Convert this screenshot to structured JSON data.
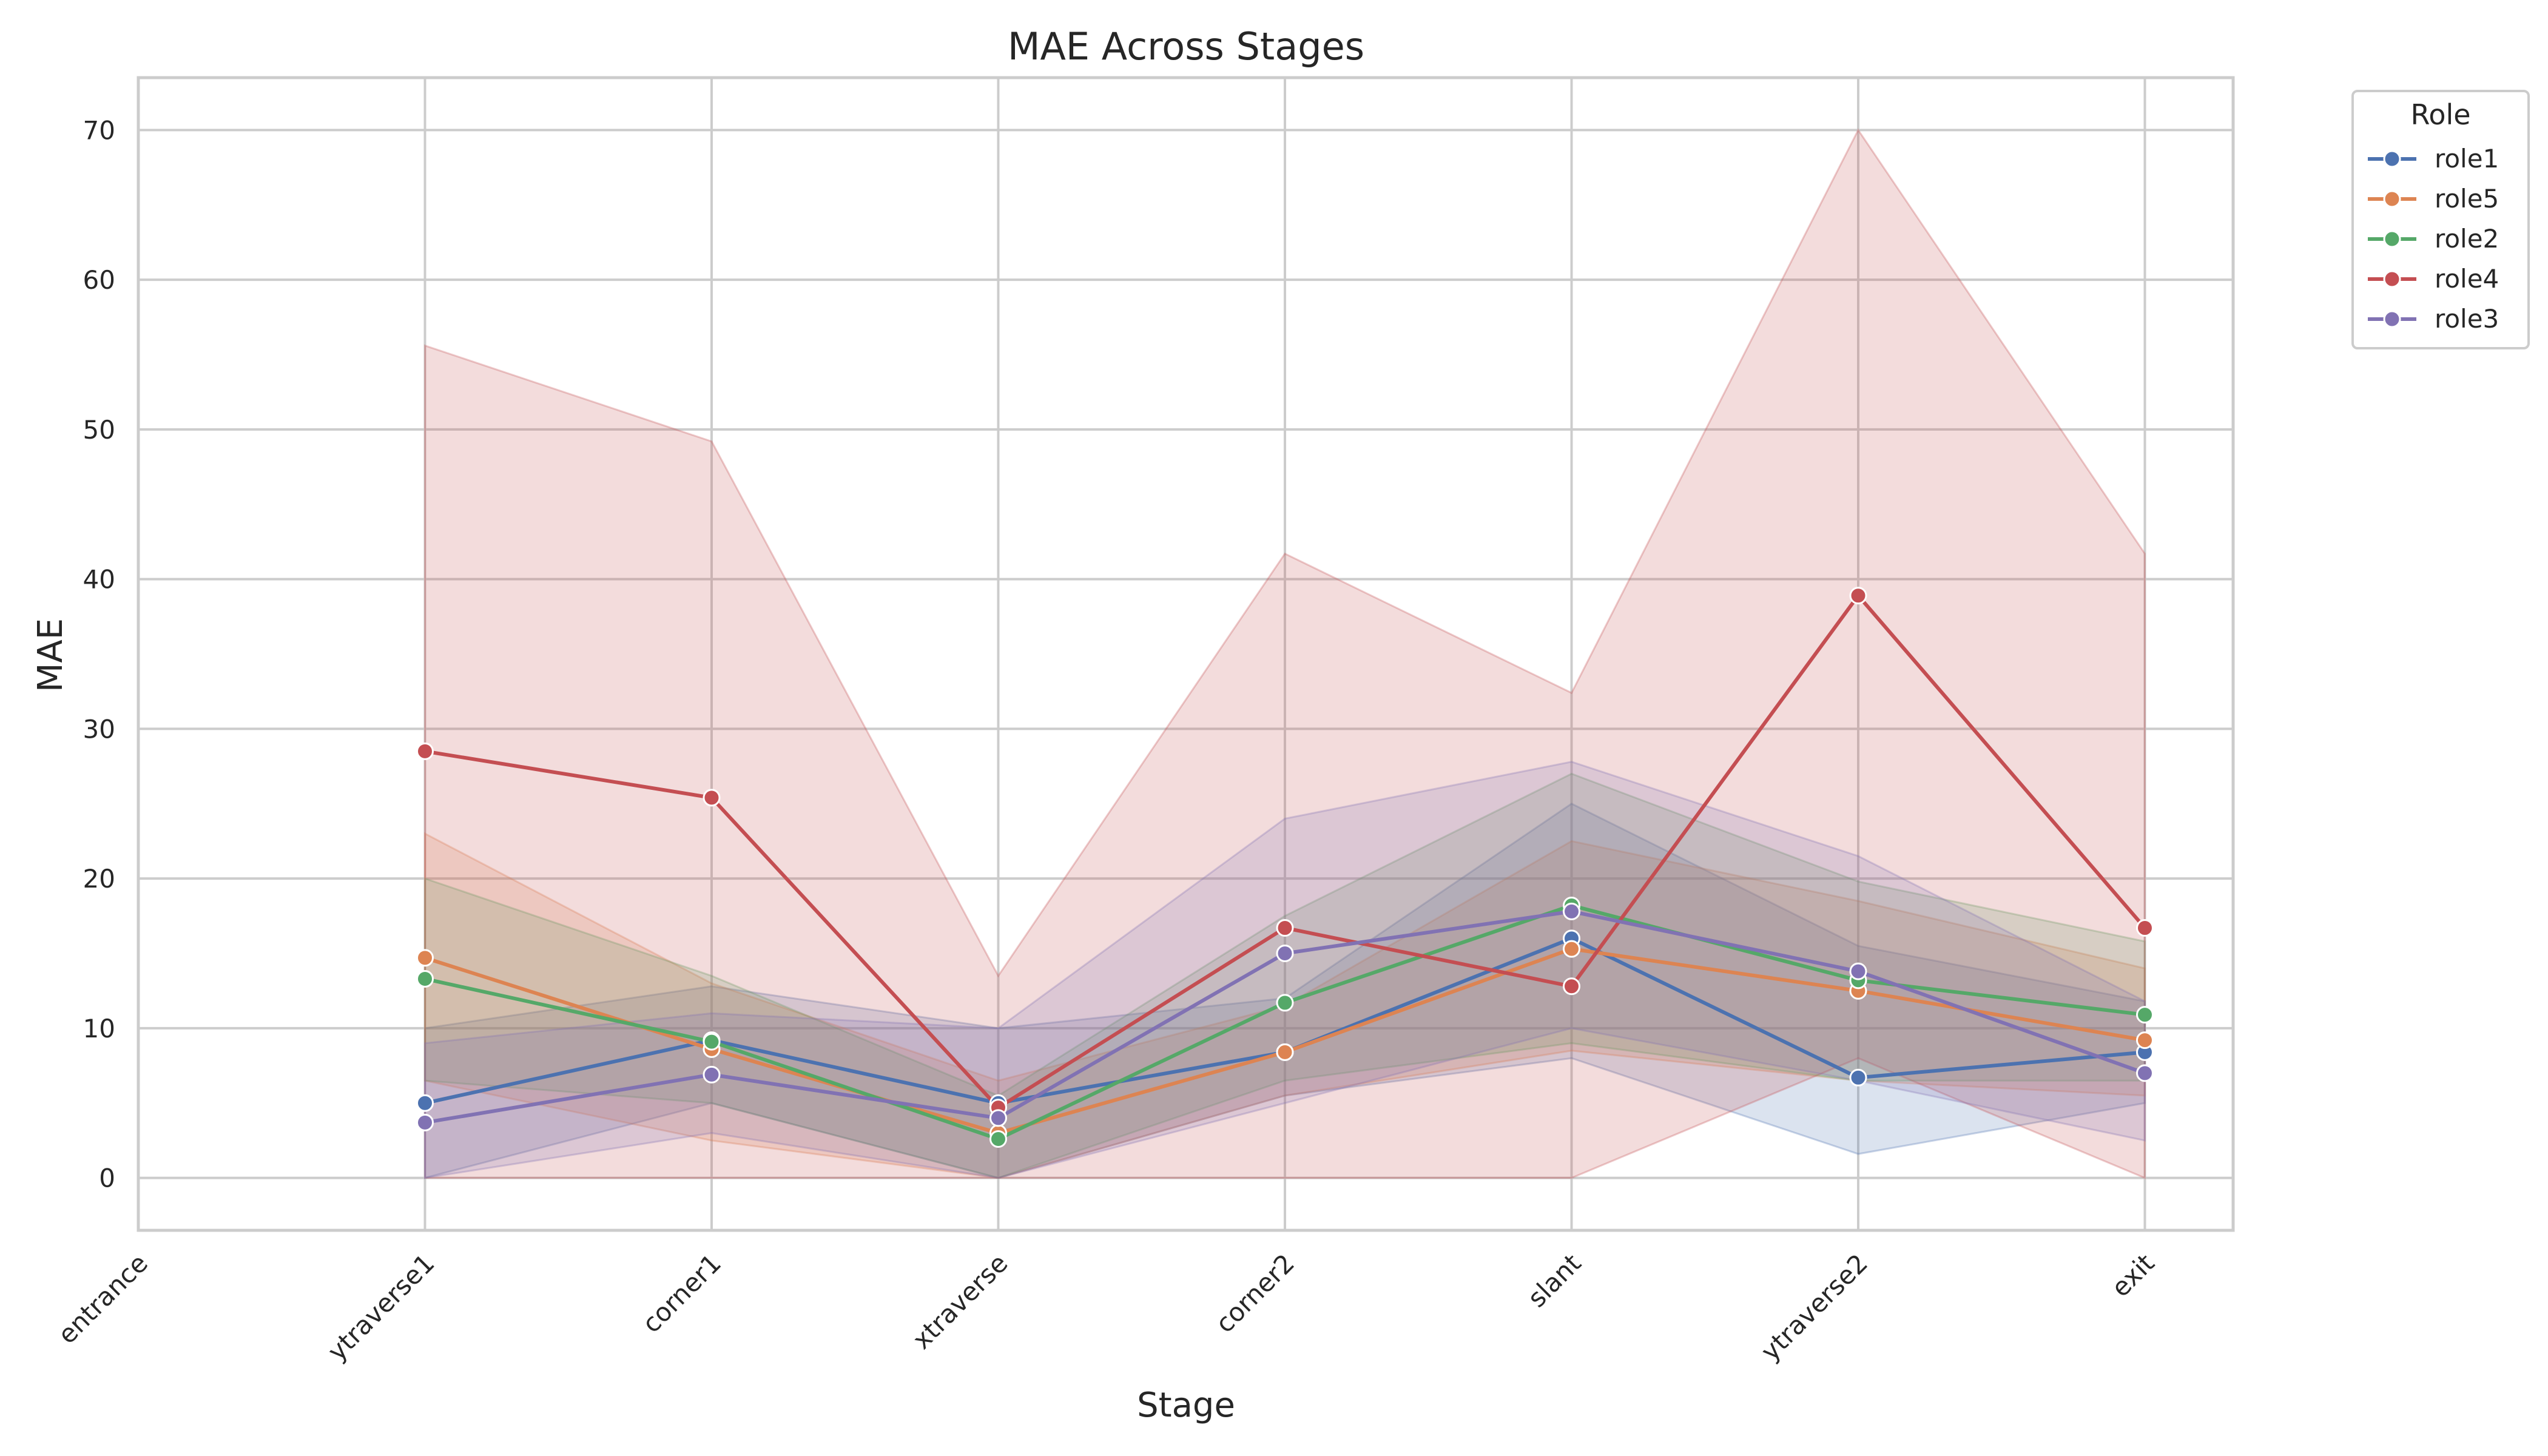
{
  "chart_data": {
    "type": "line",
    "title": "MAE Across Stages",
    "xlabel": "Stage",
    "ylabel": "MAE",
    "categories": [
      "entrance",
      "ytraverse1",
      "corner1",
      "xtraverse",
      "corner2",
      "slant",
      "ytraverse2",
      "exit"
    ],
    "ylim": [
      -3.5,
      73.5
    ],
    "yticks": [
      0,
      10,
      20,
      30,
      40,
      50,
      60,
      70
    ],
    "grid": true,
    "legend": {
      "title": "Role",
      "placement": "outside-top-right"
    },
    "series": [
      {
        "name": "role1",
        "color": "#4c72b0",
        "values": [
          null,
          5.0,
          9.2,
          5.0,
          8.4,
          16.0,
          6.7,
          8.4
        ],
        "ci_low": [
          null,
          0.0,
          5.0,
          0.0,
          5.5,
          8.0,
          1.6,
          5.0
        ],
        "ci_high": [
          null,
          10.0,
          12.8,
          10.0,
          12.0,
          25.0,
          15.5,
          11.8
        ]
      },
      {
        "name": "role5",
        "color": "#dd8452",
        "values": [
          null,
          14.7,
          8.6,
          3.0,
          8.4,
          15.3,
          12.5,
          9.2
        ],
        "ci_low": [
          null,
          6.5,
          2.5,
          0.0,
          5.5,
          8.5,
          6.5,
          5.5
        ],
        "ci_high": [
          null,
          23.0,
          13.0,
          6.5,
          11.5,
          22.5,
          18.5,
          14.0
        ]
      },
      {
        "name": "role2",
        "color": "#55a868",
        "values": [
          null,
          13.3,
          9.1,
          2.6,
          11.7,
          18.2,
          13.2,
          10.9
        ],
        "ci_low": [
          null,
          6.5,
          5.0,
          0.0,
          6.5,
          9.0,
          6.5,
          6.5
        ],
        "ci_high": [
          null,
          20.0,
          13.5,
          5.5,
          17.5,
          27.0,
          19.8,
          15.8
        ]
      },
      {
        "name": "role4",
        "color": "#c44e52",
        "values": [
          null,
          28.5,
          25.4,
          4.7,
          16.7,
          12.8,
          38.9,
          16.7
        ],
        "ci_low": [
          null,
          0.0,
          0.0,
          0.0,
          0.0,
          0.0,
          8.0,
          0.0
        ],
        "ci_high": [
          null,
          55.6,
          49.2,
          13.5,
          41.7,
          32.4,
          70.0,
          41.7
        ]
      },
      {
        "name": "role3",
        "color": "#8172b3",
        "values": [
          null,
          3.7,
          6.9,
          4.0,
          15.0,
          17.8,
          13.8,
          7.0
        ],
        "ci_low": [
          null,
          0.0,
          3.0,
          0.0,
          5.0,
          10.0,
          6.5,
          2.5
        ],
        "ci_high": [
          null,
          9.0,
          11.0,
          10.0,
          24.0,
          27.8,
          21.5,
          11.8
        ]
      }
    ]
  }
}
